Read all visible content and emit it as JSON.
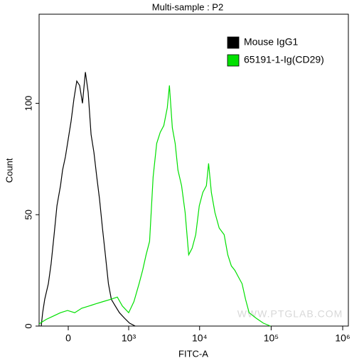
{
  "chart_data": {
    "type": "histogram-lines",
    "title": "Multi-sample : P2",
    "xlabel": "FITC-A",
    "ylabel": "Count",
    "xscale": "biexponential",
    "xlim": [
      -316,
      1200000
    ],
    "xticks": [
      0,
      {
        "value": 1000,
        "label": "10³"
      },
      {
        "value": 10000,
        "label": "10⁴"
      },
      {
        "value": 100000,
        "label": "10⁵"
      },
      {
        "value": 1000000,
        "label": "10⁶"
      }
    ],
    "ylim": [
      0,
      140
    ],
    "yticks": [
      0,
      50,
      100
    ],
    "legend": "top-right",
    "annotation": "WWW.PTGLAB.COM",
    "series": [
      {
        "name": "Mouse IgG1",
        "color": "#000000",
        "x": [
          -287,
          -269,
          -243,
          -200,
          -169,
          -138,
          -109,
          -74,
          -54,
          -27,
          0,
          27,
          54,
          81,
          109,
          138,
          169,
          200,
          234,
          269,
          307,
          346,
          390,
          438,
          491,
          547,
          632,
          730,
          870,
          1028,
          1244
        ],
        "values": [
          0,
          6,
          12,
          19,
          28,
          41,
          54,
          63,
          70,
          76,
          84,
          92,
          102,
          110,
          108,
          100,
          114,
          105,
          86,
          78,
          67,
          57,
          44,
          32,
          19,
          12,
          9,
          6,
          3.5,
          1.3,
          0
        ]
      },
      {
        "name": "65191-1-Ig(CD29)",
        "color": "#00e000",
        "x": [
          -316,
          -225,
          -146,
          -74,
          -7,
          61,
          131,
          209,
          297,
          402,
          532,
          678,
          806,
          1000,
          1190,
          1411,
          1583,
          1776,
          1990,
          2233,
          2505,
          2810,
          3150,
          3530,
          3780,
          4150,
          4550,
          4980,
          5590,
          6270,
          7030,
          7870,
          8830,
          9900,
          11100,
          12450,
          13340,
          14600,
          16380,
          18780,
          22060,
          24750,
          27770,
          31130,
          34900,
          39200,
          43900,
          49200,
          61900,
          77700,
          97800
        ],
        "values": [
          1,
          3,
          4.5,
          6,
          7,
          6,
          8,
          9,
          10,
          11,
          12,
          13,
          9,
          6,
          11,
          19,
          25,
          32,
          38,
          67,
          82,
          87,
          90,
          98,
          108,
          89,
          82,
          70,
          63,
          51,
          32,
          35,
          41,
          54,
          60,
          63,
          73,
          60,
          51,
          44,
          41,
          32,
          27,
          25,
          22,
          19,
          12,
          6,
          3.5,
          1.3,
          0
        ]
      }
    ]
  }
}
